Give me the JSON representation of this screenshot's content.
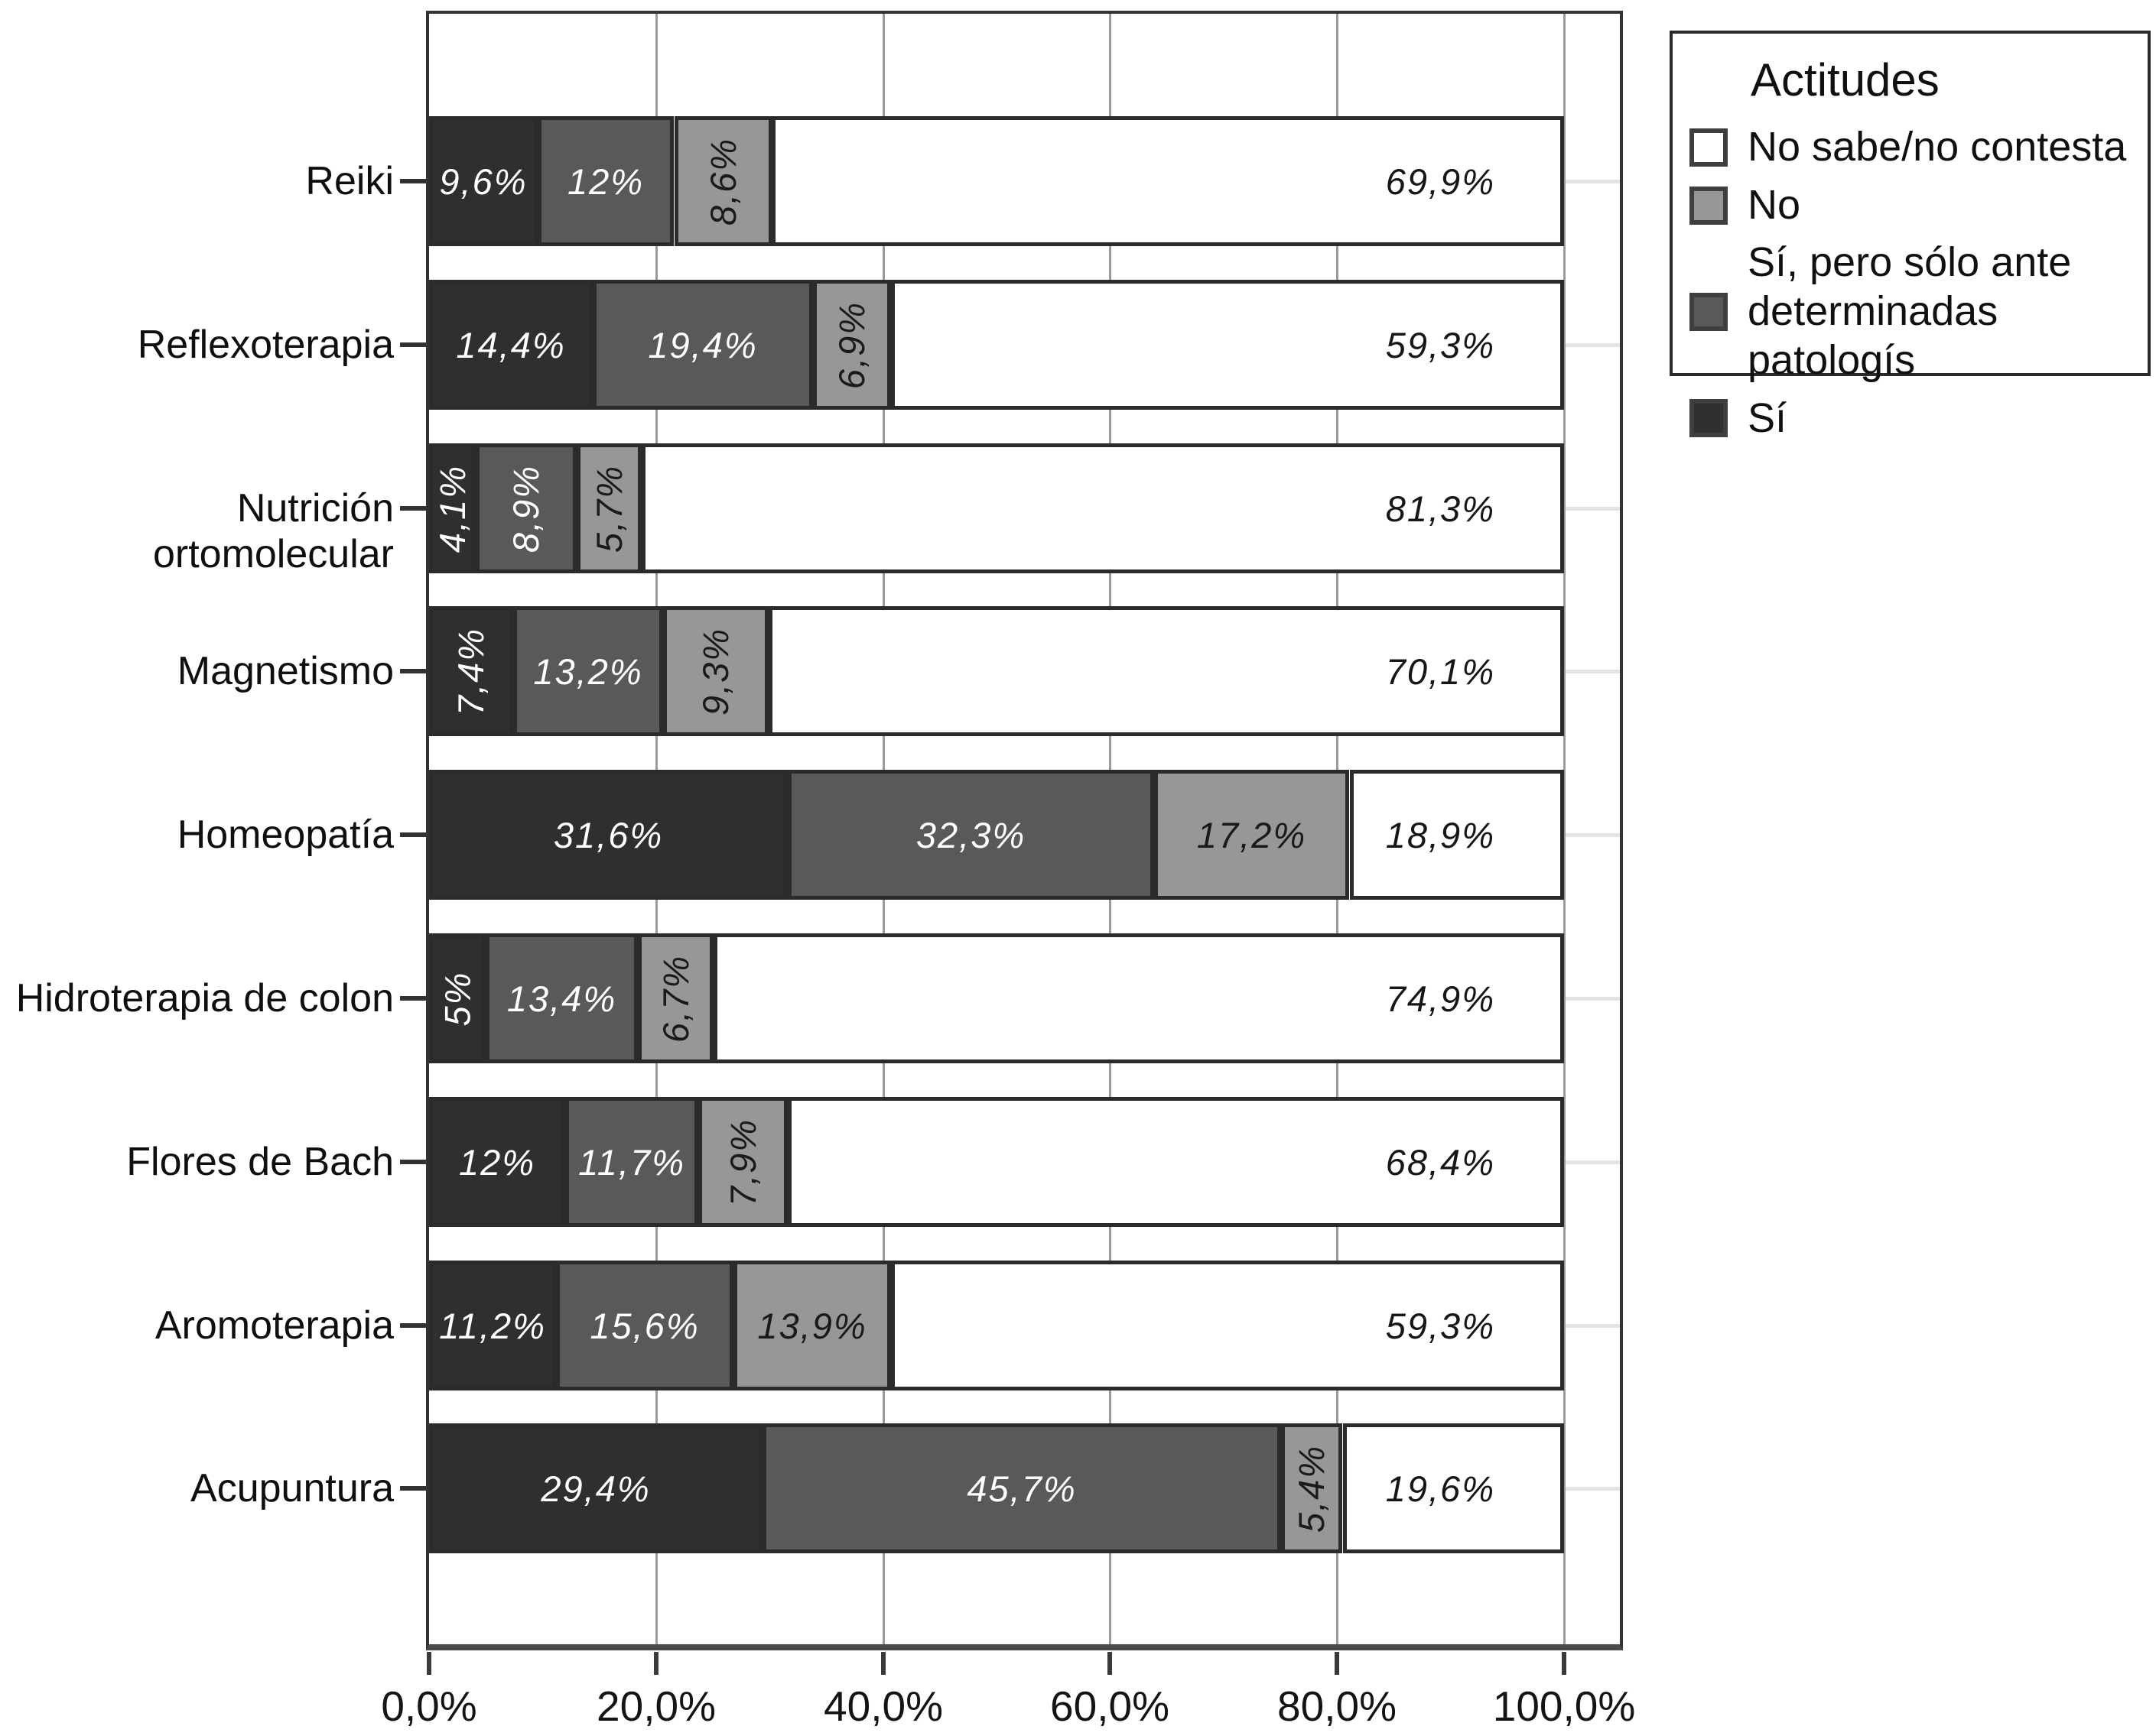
{
  "chart_data": {
    "type": "bar",
    "orientation": "horizontal",
    "stacked": true,
    "unit": "%",
    "categories": [
      "Reiki",
      "Reflexoterapia",
      "Nutrición ortomolecular",
      "Magnetismo",
      "Homeopatía",
      "Hidroterapia de colon",
      "Flores de Bach",
      "Aromoterapia",
      "Acupuntura"
    ],
    "series": [
      {
        "name": "Sí",
        "color": "#2f2f2f",
        "text_color": "#ffffff",
        "values": [
          9.6,
          14.4,
          4.1,
          7.4,
          31.6,
          5,
          12,
          11.2,
          29.4
        ],
        "labels": [
          "9,6%",
          "14,4%",
          "4,1%",
          "7,4%",
          "31,6%",
          "5%",
          "12%",
          "11,2%",
          "29,4%"
        ],
        "rotated": [
          false,
          false,
          true,
          true,
          false,
          true,
          false,
          false,
          false
        ]
      },
      {
        "name": "Sí, pero sólo ante determinadas patologís",
        "color": "#595959",
        "text_color": "#ffffff",
        "values": [
          12,
          19.4,
          8.9,
          13.2,
          32.3,
          13.4,
          11.7,
          15.6,
          45.7
        ],
        "labels": [
          "12%",
          "19,4%",
          "8,9%",
          "13,2%",
          "32,3%",
          "13,4%",
          "11,7%",
          "15,6%",
          "45,7%"
        ],
        "rotated": [
          false,
          false,
          true,
          false,
          false,
          false,
          false,
          false,
          false
        ]
      },
      {
        "name": "No",
        "color": "#979797",
        "text_color": "#1a1a1a",
        "values": [
          8.6,
          6.9,
          5.7,
          9.3,
          17.2,
          6.7,
          7.9,
          13.9,
          5.4
        ],
        "labels": [
          "8,6%",
          "6,9%",
          "5,7%",
          "9,3%",
          "17,2%",
          "6,7%",
          "7,9%",
          "13,9%",
          "5,4%"
        ],
        "rotated": [
          true,
          true,
          true,
          true,
          false,
          true,
          true,
          false,
          true
        ]
      },
      {
        "name": "No sabe/no contesta",
        "color": "#ffffff",
        "text_color": "#161616",
        "values": [
          69.9,
          59.3,
          81.3,
          70.1,
          18.9,
          74.9,
          68.4,
          59.3,
          19.6
        ],
        "labels": [
          "69,9%",
          "59,3%",
          "81,3%",
          "70,1%",
          "18,9%",
          "74,9%",
          "68,4%",
          "59,3%",
          "19,6%"
        ],
        "rotated": [
          false,
          false,
          false,
          false,
          false,
          false,
          false,
          false,
          false
        ]
      }
    ],
    "x_ticks": [
      "0,0%",
      "20,0%",
      "40,0%",
      "60,0%",
      "80,0%",
      "100,0%"
    ],
    "xlim": [
      0,
      100
    ],
    "grid": true,
    "legend": {
      "title": "Actitudes",
      "position": "top-right",
      "items": [
        {
          "label": "No sabe/no contesta",
          "color": "#ffffff"
        },
        {
          "label": "No",
          "color": "#979797"
        },
        {
          "label": "Sí, pero sólo ante determinadas patologís",
          "color": "#595959"
        },
        {
          "label": "Sí",
          "color": "#2f2f2f"
        }
      ]
    }
  }
}
